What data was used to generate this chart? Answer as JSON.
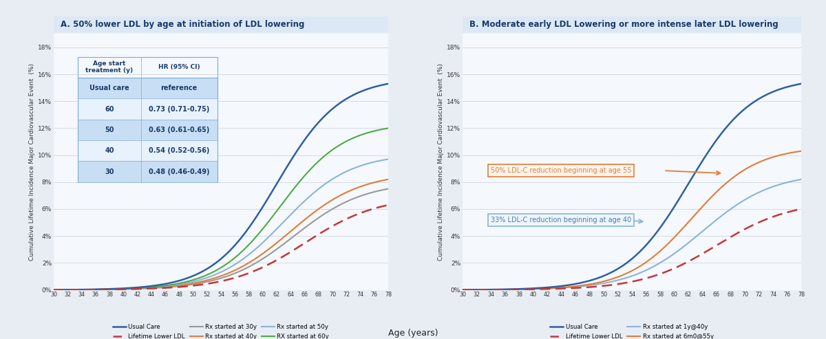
{
  "panel_a_title": "A. 50% lower LDL by age at initiation of LDL lowering",
  "panel_b_title": "B. Moderate early LDL Lowering or more intense later LDL lowering",
  "xlabel": "Age (years)",
  "ylabel": "Cumulative Lifetime Incidence Major Cardiovascular Event  (%)",
  "x_ticks": [
    30,
    32,
    34,
    36,
    38,
    40,
    42,
    44,
    46,
    48,
    50,
    52,
    54,
    56,
    58,
    60,
    62,
    64,
    66,
    68,
    70,
    72,
    74,
    76,
    78
  ],
  "y_ticks": [
    0,
    2,
    4,
    6,
    8,
    10,
    12,
    14,
    16,
    18
  ],
  "y_tick_labels": [
    "0%",
    "2%",
    "4%",
    "6%",
    "8%",
    "10%",
    "12%",
    "14%",
    "16%",
    "18%"
  ],
  "ylim_max": 19,
  "xlim": [
    30,
    78
  ],
  "fig_bg": "#e8edf4",
  "panel_bg": "#f5f8fc",
  "title_bg": "#dce8f5",
  "col_usual": "#2e5fa3",
  "col_lifetime": "#c93535",
  "col_rx30": "#999999",
  "col_rx40": "#e07c39",
  "col_rx50": "#8ab4d8",
  "col_rx60": "#4faa46",
  "col_rx1y40": "#8ab4d8",
  "col_rx6m55": "#e07c39",
  "table_header_col1": "Age start\ntreatment (y)",
  "table_header_col2": "HR (95% CI)",
  "table_data": [
    [
      "Usual care",
      "reference"
    ],
    [
      "60",
      "0.73 (0.71-0.75)"
    ],
    [
      "50",
      "0.63 (0.61-0.65)"
    ],
    [
      "40",
      "0.54 (0.52-0.56)"
    ],
    [
      "30",
      "0.48 (0.46-0.49)"
    ]
  ],
  "ann_b1_normal": "50% LDL-C reduction beginning at ",
  "ann_b1_bold": "age 55",
  "ann_b2_normal": "33% LDL-C reduction beginning at ",
  "ann_b2_bold": "age 40",
  "legend_a": [
    "Usual Care",
    "Lifetime Lower LDL",
    "Rx started at 30y",
    "Rx started at 40y",
    "Rx started at 50y",
    "RX started at 60y"
  ],
  "legend_b": [
    "Usual Care",
    "Lifetime Lower LDL",
    "Rx started at 1y@40y",
    "Rx started at 6m0@55y"
  ]
}
